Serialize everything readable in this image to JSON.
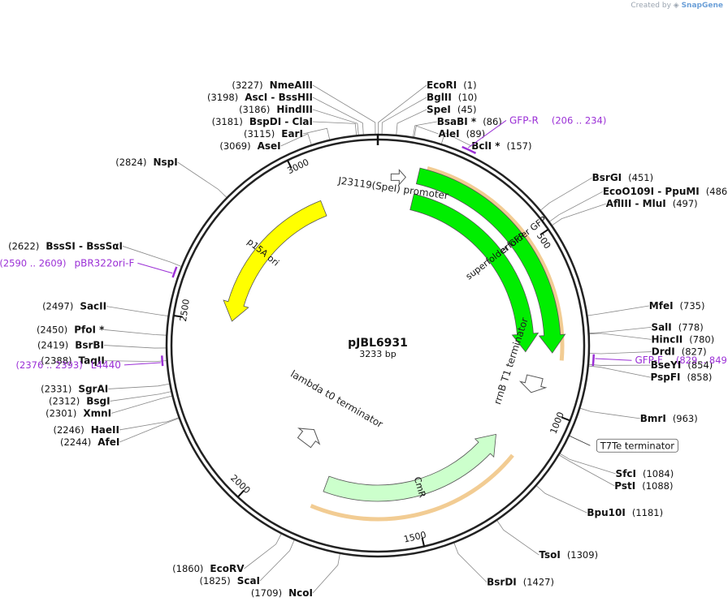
{
  "brand": {
    "created_by": "Created by",
    "app": "SnapGene",
    "logo_icon": "snapgene-logo-icon"
  },
  "plasmid": {
    "name": "pJBL6931",
    "length_label": "3233 bp",
    "length": 3233
  },
  "ticks": [
    {
      "pos": 500,
      "label": "500"
    },
    {
      "pos": 1000,
      "label": "1000"
    },
    {
      "pos": 1500,
      "label": "1500"
    },
    {
      "pos": 2000,
      "label": "2000"
    },
    {
      "pos": 2500,
      "label": "2500"
    },
    {
      "pos": 3000,
      "label": "3000"
    }
  ],
  "sites": [
    {
      "name": "NmeAIII",
      "pos": 3227,
      "coord": "(3227)",
      "side": "left"
    },
    {
      "name": "AscI",
      "name2": "BssHII",
      "pos": 3198,
      "coord": "(3198)",
      "side": "left"
    },
    {
      "name": "HindIII",
      "pos": 3186,
      "coord": "(3186)",
      "side": "left"
    },
    {
      "name": "BspDI",
      "name2": "ClaI",
      "pos": 3181,
      "coord": "(3181)",
      "side": "left"
    },
    {
      "name": "EarI",
      "pos": 3115,
      "coord": "(3115)",
      "side": "left"
    },
    {
      "name": "AseI",
      "pos": 3069,
      "coord": "(3069)",
      "side": "left"
    },
    {
      "name": "NspI",
      "pos": 2824,
      "coord": "(2824)",
      "side": "left"
    },
    {
      "name": "BssSI",
      "name2": "BssSαI",
      "pos": 2622,
      "coord": "(2622)",
      "side": "left"
    },
    {
      "name": "SacII",
      "pos": 2497,
      "coord": "(2497)",
      "side": "left"
    },
    {
      "name": "PfoI *",
      "pos": 2450,
      "coord": "(2450)",
      "side": "left"
    },
    {
      "name": "BsrBI",
      "pos": 2419,
      "coord": "(2419)",
      "side": "left"
    },
    {
      "name": "TaqII",
      "pos": 2388,
      "coord": "(2388)",
      "side": "left"
    },
    {
      "name": "SgrAI",
      "pos": 2331,
      "coord": "(2331)",
      "side": "left"
    },
    {
      "name": "BsgI",
      "pos": 2312,
      "coord": "(2312)",
      "side": "left"
    },
    {
      "name": "XmnI",
      "pos": 2301,
      "coord": "(2301)",
      "side": "left"
    },
    {
      "name": "HaeII",
      "pos": 2246,
      "coord": "(2246)",
      "side": "left"
    },
    {
      "name": "AfeI",
      "pos": 2244,
      "coord": "(2244)",
      "side": "left"
    },
    {
      "name": "EcoRV",
      "pos": 1860,
      "coord": "(1860)",
      "side": "left"
    },
    {
      "name": "ScaI",
      "pos": 1825,
      "coord": "(1825)",
      "side": "left"
    },
    {
      "name": "NcoI",
      "pos": 1709,
      "coord": "(1709)",
      "side": "left"
    },
    {
      "name": "EcoRI",
      "pos": 1,
      "coord": "(1)",
      "side": "right"
    },
    {
      "name": "BglII",
      "pos": 10,
      "coord": "(10)",
      "side": "right"
    },
    {
      "name": "SpeI",
      "pos": 45,
      "coord": "(45)",
      "side": "right"
    },
    {
      "name": "BsaBI *",
      "pos": 86,
      "coord": "(86)",
      "side": "right"
    },
    {
      "name": "AleI",
      "pos": 89,
      "coord": "(89)",
      "side": "right"
    },
    {
      "name": "BclI *",
      "pos": 157,
      "coord": "(157)",
      "side": "right"
    },
    {
      "name": "BsrGI",
      "pos": 451,
      "coord": "(451)",
      "side": "right"
    },
    {
      "name": "EcoO109I",
      "name2": "PpuMI",
      "pos": 486,
      "coord": "(486)",
      "side": "right"
    },
    {
      "name": "AflIII",
      "name2": "MluI",
      "pos": 497,
      "coord": "(497)",
      "side": "right"
    },
    {
      "name": "MfeI",
      "pos": 735,
      "coord": "(735)",
      "side": "right"
    },
    {
      "name": "SalI",
      "pos": 778,
      "coord": "(778)",
      "side": "right"
    },
    {
      "name": "HincII",
      "pos": 780,
      "coord": "(780)",
      "side": "right"
    },
    {
      "name": "DrdI",
      "pos": 827,
      "coord": "(827)",
      "side": "right"
    },
    {
      "name": "BseYI",
      "pos": 854,
      "coord": "(854)",
      "side": "right"
    },
    {
      "name": "PspFI",
      "pos": 858,
      "coord": "(858)",
      "side": "right"
    },
    {
      "name": "BmrI",
      "pos": 963,
      "coord": "(963)",
      "side": "right"
    },
    {
      "name": "SfcI",
      "pos": 1084,
      "coord": "(1084)",
      "side": "right"
    },
    {
      "name": "PstI",
      "pos": 1088,
      "coord": "(1088)",
      "side": "right"
    },
    {
      "name": "Bpu10I",
      "pos": 1181,
      "coord": "(1181)",
      "side": "right"
    },
    {
      "name": "TsoI",
      "pos": 1309,
      "coord": "(1309)",
      "side": "right"
    },
    {
      "name": "BsrDI",
      "pos": 1427,
      "coord": "(1427)",
      "side": "right"
    }
  ],
  "primers": [
    {
      "name": "GFP-R",
      "range": "(206 .. 234)",
      "start": 206,
      "end": 234,
      "color": "#9b30d6"
    },
    {
      "name": "GFP-F",
      "range": "(829 .. 849)",
      "start": 829,
      "end": 849,
      "color": "#9b30d6"
    },
    {
      "name": "pBR322ori-F",
      "range": "(2590 .. 2609)",
      "start": 2590,
      "end": 2609,
      "color": "#9b30d6"
    },
    {
      "name": "L4440",
      "range": "(2376 .. 2393)",
      "start": 2376,
      "end": 2393,
      "color": "#9b30d6"
    }
  ],
  "features": [
    {
      "name": "superfolder GFP",
      "start": 120,
      "end": 830,
      "ring": "outer",
      "color": "#00ee00",
      "orf": true
    },
    {
      "name": "superfolder GFP",
      "start": 120,
      "end": 830,
      "ring": "inner",
      "color": "#00ee00",
      "orf": false
    },
    {
      "name": "CmR",
      "start": 1140,
      "end": 1800,
      "ring": "inner",
      "color": "#ccffcc",
      "orf": true,
      "dir": "rev"
    },
    {
      "name": "p15A ori",
      "start": 2510,
      "end": 3040,
      "ring": "inner",
      "color": "#ffff00",
      "dir": "rev"
    },
    {
      "name": "J23119(SpeI) promoter",
      "pos": 60,
      "ring": "promoter"
    },
    {
      "name": "rrnB T1 terminator",
      "pos": 930,
      "ring": "terminator"
    },
    {
      "name": "lambda t0 terminator",
      "pos": 1950,
      "ring": "terminator"
    }
  ],
  "boxed_label": {
    "name": "T7Te terminator",
    "pos": 1035
  },
  "colors": {
    "backbone": "#222222",
    "orf": "#e8a33a",
    "primer": "#9b30d6",
    "gfp": "#00ee00",
    "cmr": "#ccffcc",
    "ori": "#ffff00"
  }
}
